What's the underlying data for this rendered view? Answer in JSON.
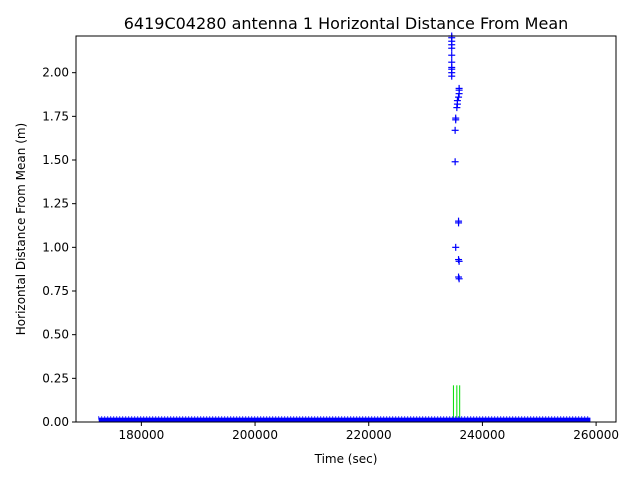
{
  "chart_data": {
    "type": "scatter",
    "title": "6419C04280 antenna 1 Horizontal Distance From Mean",
    "xlabel": "Time (sec)",
    "ylabel": "Horizontal Distance From Mean (m)",
    "xlim": [
      168500,
      263500
    ],
    "ylim": [
      0,
      2.21
    ],
    "x_ticks": [
      180000,
      200000,
      220000,
      240000,
      260000
    ],
    "x_tick_labels": [
      "180000",
      "200000",
      "220000",
      "240000",
      "260000"
    ],
    "y_ticks": [
      0.0,
      0.25,
      0.5,
      0.75,
      1.0,
      1.25,
      1.5,
      1.75,
      2.0
    ],
    "y_tick_labels": [
      "0.00",
      "0.25",
      "0.50",
      "0.75",
      "1.00",
      "1.25",
      "1.50",
      "1.75",
      "2.00"
    ],
    "grid": false,
    "colors": {
      "series": "#0000ff",
      "band": "#00dd00",
      "axes": "#000000"
    },
    "marker": "plus",
    "series": [
      {
        "name": "",
        "baseline": {
          "x_start": 172500,
          "x_end": 259000,
          "y_min": 0.0,
          "y_max": 0.025
        },
        "points": [
          [
            234600,
            2.21
          ],
          [
            234600,
            2.2
          ],
          [
            234600,
            2.18
          ],
          [
            234600,
            2.16
          ],
          [
            234600,
            2.14
          ],
          [
            234600,
            2.1
          ],
          [
            234600,
            2.06
          ],
          [
            234600,
            2.03
          ],
          [
            234600,
            2.02
          ],
          [
            234600,
            2.0
          ],
          [
            234600,
            1.98
          ],
          [
            235900,
            1.91
          ],
          [
            235900,
            1.9
          ],
          [
            235900,
            1.88
          ],
          [
            235800,
            1.86
          ],
          [
            235600,
            1.84
          ],
          [
            235600,
            1.82
          ],
          [
            235500,
            1.8
          ],
          [
            235300,
            1.74
          ],
          [
            235300,
            1.73
          ],
          [
            235200,
            1.67
          ],
          [
            235200,
            1.49
          ],
          [
            235800,
            1.15
          ],
          [
            235800,
            1.14
          ],
          [
            235300,
            1.0
          ],
          [
            235800,
            0.93
          ],
          [
            235900,
            0.92
          ],
          [
            235800,
            0.83
          ],
          [
            235900,
            0.82
          ]
        ]
      },
      {
        "name": "",
        "vertical_lines": [
          {
            "x": 234900,
            "y_top": 0.21
          },
          {
            "x": 235500,
            "y_top": 0.21
          },
          {
            "x": 236000,
            "y_top": 0.21
          }
        ]
      }
    ]
  }
}
